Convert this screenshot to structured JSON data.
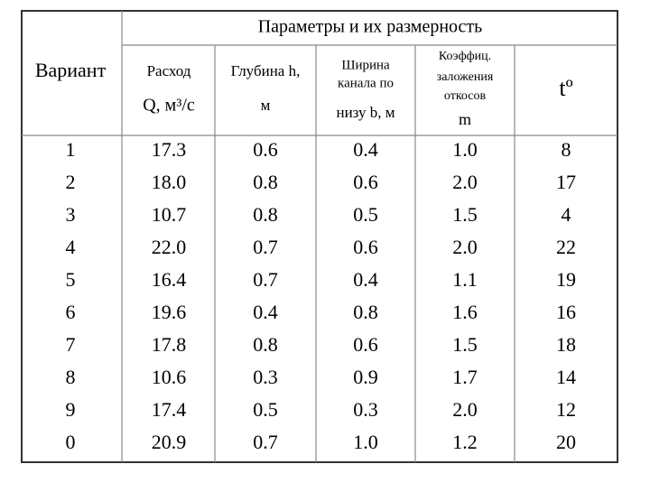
{
  "header": {
    "title": "Параметры и их размерность",
    "variant": "Вариант",
    "columns": [
      {
        "lines": [
          "Расход",
          "Q,  м³/с"
        ]
      },
      {
        "lines": [
          "Глубина h,",
          "м"
        ]
      },
      {
        "lines": [
          "Ширина",
          "канала по",
          "низу  b, м"
        ]
      },
      {
        "lines": [
          "Коэффиц.",
          "заложения",
          "откосов",
          "m"
        ]
      },
      {
        "lines": [
          "tº"
        ]
      }
    ]
  },
  "table": {
    "rows": [
      [
        "1",
        "17.3",
        "0.6",
        "0.4",
        "1.0",
        "8"
      ],
      [
        "2",
        "18.0",
        "0.8",
        "0.6",
        "2.0",
        "17"
      ],
      [
        "3",
        "10.7",
        "0.8",
        "0.5",
        "1.5",
        "4"
      ],
      [
        "4",
        "22.0",
        "0.7",
        "0.6",
        "2.0",
        "22"
      ],
      [
        "5",
        "16.4",
        "0.7",
        "0.4",
        "1.1",
        "19"
      ],
      [
        "6",
        "19.6",
        "0.4",
        "0.8",
        "1.6",
        "16"
      ],
      [
        "7",
        "17.8",
        "0.8",
        "0.6",
        "1.5",
        "18"
      ],
      [
        "8",
        "10.6",
        "0.3",
        "0.9",
        "1.7",
        "14"
      ],
      [
        "9",
        "17.4",
        "0.5",
        "0.3",
        "2.0",
        "12"
      ],
      [
        "0",
        "20.9",
        "0.7",
        "1.0",
        "1.2",
        "20"
      ]
    ]
  }
}
